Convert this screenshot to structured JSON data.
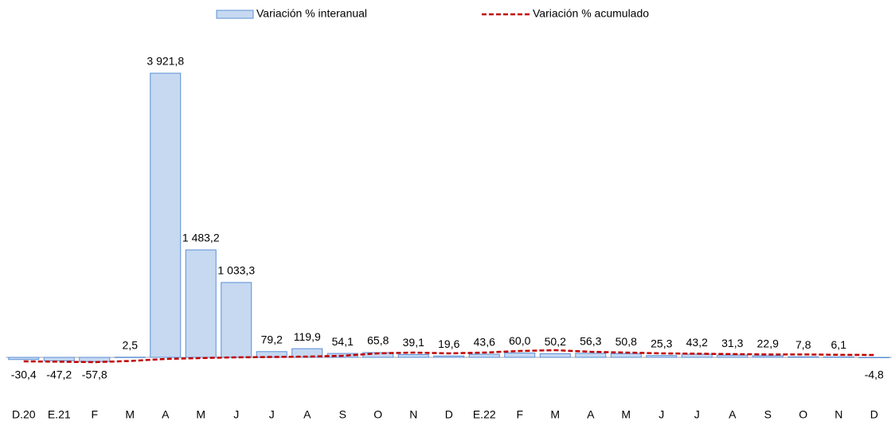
{
  "chart_data": {
    "type": "bar",
    "categories": [
      "D.20",
      "E.21",
      "F",
      "M",
      "A",
      "M",
      "J",
      "J",
      "A",
      "S",
      "O",
      "N",
      "D",
      "E.22",
      "F",
      "M",
      "A",
      "M",
      "J",
      "J",
      "A",
      "S",
      "O",
      "N",
      "D"
    ],
    "series": [
      {
        "name": "Variación % interanual",
        "type": "bar",
        "color": "#c6d9f1",
        "stroke": "#5b8fd6",
        "values": [
          -30.4,
          -47.2,
          -57.8,
          2.5,
          3921.8,
          1483.2,
          1033.3,
          79.2,
          119.9,
          54.1,
          65.8,
          39.1,
          19.6,
          43.6,
          60.0,
          50.2,
          56.3,
          50.8,
          25.3,
          43.2,
          31.3,
          22.9,
          7.8,
          6.1,
          -4.8
        ],
        "value_labels": [
          "-30,4",
          "-47,2",
          "-57,8",
          "2,5",
          "3 921,8",
          "1 483,2",
          "1 033,3",
          "79,2",
          "119,9",
          "54,1",
          "65,8",
          "39,1",
          "19,6",
          "43,6",
          "60,0",
          "50,2",
          "56,3",
          "50,8",
          "25,3",
          "43,2",
          "31,3",
          "22,9",
          "7,8",
          "6,1",
          "-4,8"
        ]
      },
      {
        "name": "Variación % acumulado",
        "type": "line",
        "color": "#c00000",
        "values": [
          -55,
          -60,
          -66,
          -50,
          -22,
          -10,
          0,
          5,
          10,
          22,
          55,
          66,
          55,
          66,
          88,
          99,
          77,
          66,
          55,
          50,
          45,
          40,
          40,
          35,
          33
        ]
      }
    ]
  }
}
